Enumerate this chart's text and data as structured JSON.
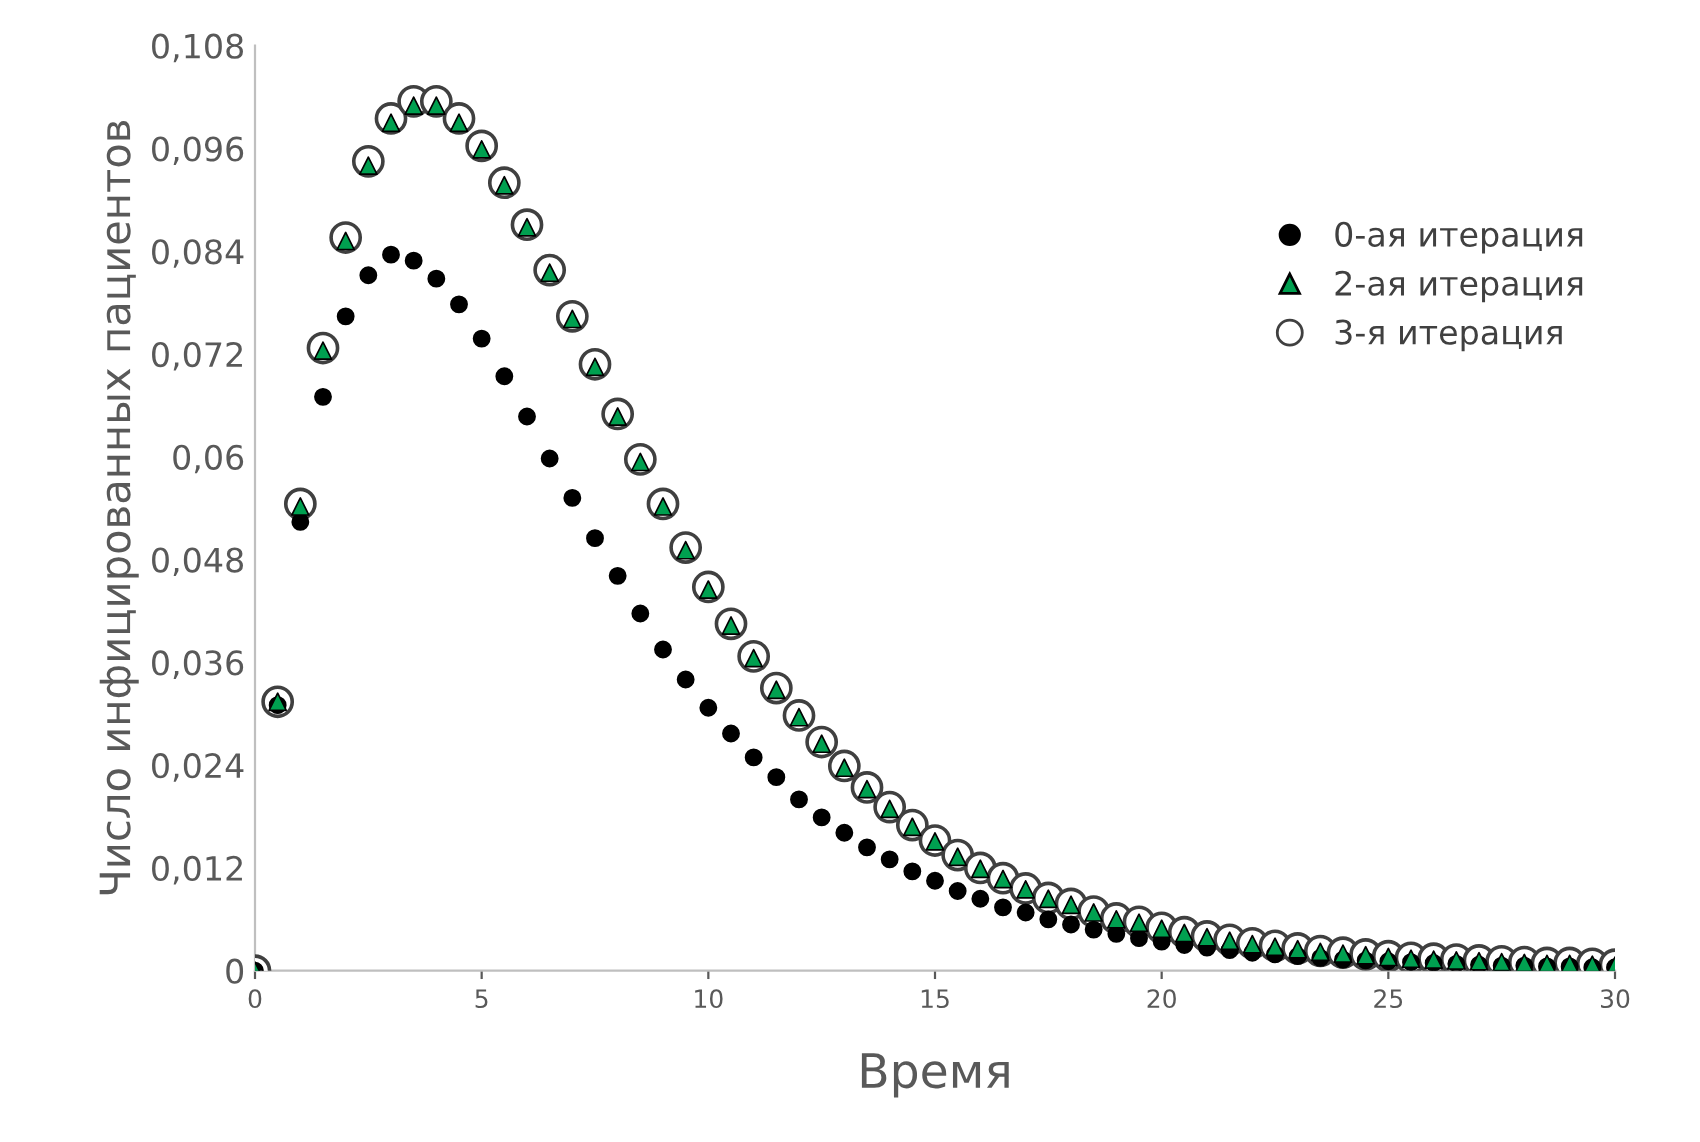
{
  "chart_data": {
    "type": "scatter",
    "xlabel": "Время",
    "ylabel": "Число инфицированных пациентов",
    "x": [
      0,
      0.5,
      1,
      1.5,
      2,
      2.5,
      3,
      3.5,
      4,
      4.5,
      5,
      5.5,
      6,
      6.5,
      7,
      7.5,
      8,
      8.5,
      9,
      9.5,
      10,
      10.5,
      11,
      11.5,
      12,
      12.5,
      13,
      13.5,
      14,
      14.5,
      15,
      15.5,
      16,
      16.5,
      17,
      17.5,
      18,
      18.5,
      19,
      19.5,
      20,
      20.5,
      21,
      21.5,
      22,
      22.5,
      23,
      23.5,
      24,
      24.5,
      25,
      25.5,
      26,
      26.5,
      27,
      27.5,
      28,
      28.5,
      29,
      29.5,
      30
    ],
    "series": [
      {
        "name": "0-ая итерация",
        "color": "#000000",
        "marker": "circle",
        "values": [
          0,
          0.031,
          0.0524,
          0.067,
          0.0764,
          0.0812,
          0.0836,
          0.0829,
          0.0808,
          0.0778,
          0.0738,
          0.0694,
          0.0647,
          0.0598,
          0.0552,
          0.0505,
          0.0461,
          0.0417,
          0.0375,
          0.034,
          0.0307,
          0.0277,
          0.0249,
          0.0226,
          0.02,
          0.0179,
          0.0161,
          0.0144,
          0.013,
          0.0116,
          0.0105,
          0.0093,
          0.0084,
          0.0074,
          0.0068,
          0.006,
          0.0054,
          0.0048,
          0.0043,
          0.0038,
          0.0034,
          0.003,
          0.0027,
          0.0024,
          0.0021,
          0.0019,
          0.0017,
          0.0015,
          0.0013,
          0.0012,
          0.0011,
          0.001,
          0.0009,
          0.0008,
          0.0007,
          0.0006,
          0.0006,
          0.0005,
          0.0005,
          0.0004,
          0.0004
        ]
      },
      {
        "name": "2-ая итерация",
        "color": "#00a050",
        "marker": "triangle",
        "values": [
          0,
          0.0314,
          0.0542,
          0.0724,
          0.0852,
          0.094,
          0.099,
          0.101,
          0.101,
          0.099,
          0.0959,
          0.0917,
          0.0868,
          0.0815,
          0.0761,
          0.0705,
          0.0647,
          0.0594,
          0.0542,
          0.0491,
          0.0445,
          0.0403,
          0.0365,
          0.0328,
          0.0296,
          0.0265,
          0.0237,
          0.0212,
          0.0189,
          0.0168,
          0.0151,
          0.0133,
          0.0119,
          0.0107,
          0.0095,
          0.0084,
          0.0077,
          0.0068,
          0.006,
          0.0056,
          0.0049,
          0.0044,
          0.0039,
          0.0035,
          0.0031,
          0.0028,
          0.0025,
          0.0022,
          0.002,
          0.0018,
          0.0016,
          0.0014,
          0.0013,
          0.0012,
          0.0011,
          0.001,
          0.0009,
          0.0008,
          0.0008,
          0.0007,
          0.0006
        ]
      },
      {
        "name": "3-я итерация",
        "color": "#ffffff",
        "marker": "circle",
        "values": [
          0,
          0.0314,
          0.0545,
          0.0727,
          0.0856,
          0.0945,
          0.0995,
          0.1015,
          0.1015,
          0.0995,
          0.0963,
          0.092,
          0.0871,
          0.0818,
          0.0764,
          0.0708,
          0.065,
          0.0597,
          0.0545,
          0.0494,
          0.0448,
          0.0405,
          0.0367,
          0.033,
          0.0298,
          0.0267,
          0.0239,
          0.0214,
          0.0191,
          0.017,
          0.0152,
          0.0135,
          0.012,
          0.0108,
          0.0096,
          0.0085,
          0.0078,
          0.0069,
          0.0061,
          0.0057,
          0.005,
          0.0045,
          0.004,
          0.0036,
          0.0032,
          0.0029,
          0.0026,
          0.0023,
          0.0021,
          0.0019,
          0.0017,
          0.0015,
          0.0014,
          0.0013,
          0.0012,
          0.0011,
          0.001,
          0.0009,
          0.0009,
          0.0008,
          0.0007
        ]
      }
    ],
    "xlim": [
      0,
      30
    ],
    "xticks": [
      0,
      5,
      10,
      15,
      20,
      25,
      30
    ],
    "ylim": [
      0,
      0.108
    ],
    "yticks": [
      0,
      {
        "value": 0.012,
        "label": "0,012"
      },
      {
        "value": 0.024,
        "label": "0,024"
      },
      {
        "value": 0.036,
        "label": "0,036"
      },
      {
        "value": 0.048,
        "label": "0,048"
      },
      {
        "value": 0.06,
        "label": "0,06"
      },
      {
        "value": 0.072,
        "label": "0,072"
      },
      {
        "value": 0.084,
        "label": "0,084"
      },
      {
        "value": 0.096,
        "label": "0,096"
      },
      {
        "value": 0.108,
        "label": "0,108"
      }
    ],
    "grid": false,
    "legend": "right"
  }
}
